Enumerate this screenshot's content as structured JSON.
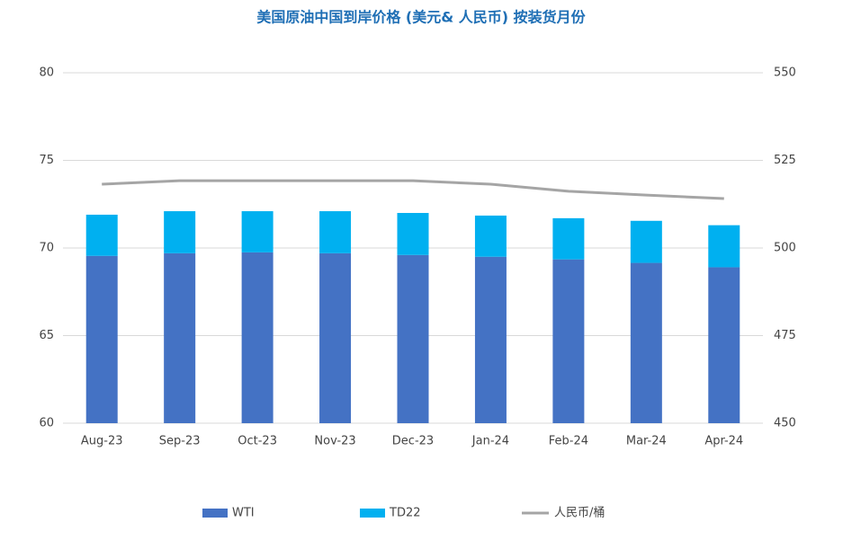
{
  "chart_data": {
    "type": "bar",
    "stacked": true,
    "title": "美国原油中国到岸价格 (美元& 人民币) 按装货月份",
    "categories": [
      "Aug-23",
      "Sep-23",
      "Oct-23",
      "Nov-23",
      "Dec-23",
      "Jan-24",
      "Feb-24",
      "Mar-24",
      "Apr-24"
    ],
    "series": [
      {
        "name": "WTI",
        "type": "bar",
        "color": "#4472c4",
        "values": [
          69.55,
          69.7,
          69.75,
          69.7,
          69.6,
          69.5,
          69.35,
          69.15,
          68.9
        ]
      },
      {
        "name": "TD22",
        "type": "bar",
        "color": "#00b0f0",
        "values": [
          2.35,
          2.4,
          2.35,
          2.4,
          2.4,
          2.35,
          2.35,
          2.4,
          2.4
        ]
      },
      {
        "name": "人民币/桶",
        "type": "line",
        "axis": "y2",
        "color": "#a5a5a5",
        "values": [
          518.2,
          519.2,
          519.2,
          519.2,
          519.2,
          518.2,
          516.2,
          515.1,
          514.1
        ]
      }
    ],
    "ylim": [
      60,
      80
    ],
    "yticks": [
      60,
      65,
      70,
      75,
      80
    ],
    "y2lim": [
      450,
      550
    ],
    "y2ticks": [
      450,
      475,
      500,
      525,
      550
    ],
    "grid": true,
    "legend": "bottom"
  }
}
